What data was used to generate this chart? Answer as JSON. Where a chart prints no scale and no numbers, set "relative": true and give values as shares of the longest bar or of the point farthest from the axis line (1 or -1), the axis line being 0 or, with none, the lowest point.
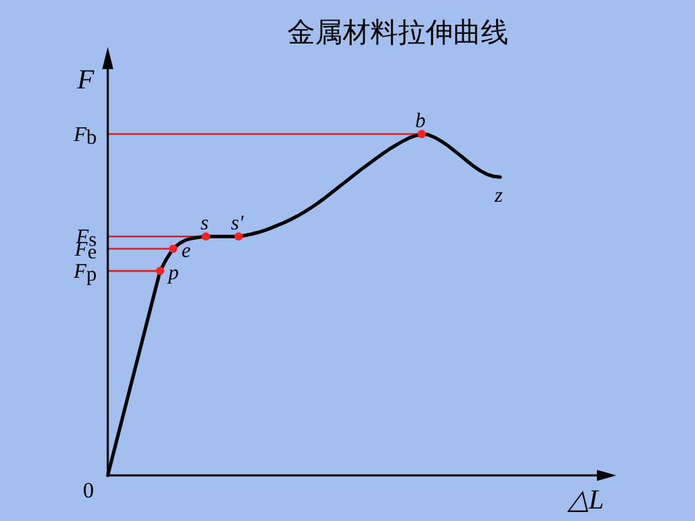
{
  "chart_data": {
    "type": "line",
    "title": "金属材料拉伸曲线",
    "xlabel": "△L",
    "ylabel": "F",
    "relative": true,
    "categories": [
      null,
      null,
      null,
      null,
      null,
      null,
      null,
      null,
      null,
      null,
      null,
      null,
      null,
      null,
      null,
      null,
      null,
      null,
      null,
      null,
      null,
      null,
      null,
      null,
      null,
      null,
      null,
      null,
      null,
      null,
      null,
      null,
      null,
      null,
      null,
      null,
      null,
      null,
      null,
      null,
      null,
      null,
      null,
      null,
      null,
      null,
      null,
      null,
      null,
      null,
      null,
      null,
      null,
      null,
      null,
      null,
      null,
      null,
      null,
      null,
      null
    ],
    "series": [
      {
        "color": "#000000",
        "values": [
          0,
          0.075,
          0.15,
          0.225,
          0.3,
          0.374,
          0.449,
          0.524,
          0.599,
          0.635,
          0.664,
          0.68,
          0.69,
          0.695,
          0.698,
          0.7,
          0.7,
          0.7,
          0.7,
          0.7,
          0.7,
          0.703,
          0.707,
          0.712,
          0.718,
          0.725,
          0.733,
          0.741,
          0.75,
          0.76,
          0.771,
          0.783,
          0.796,
          0.81,
          0.825,
          0.84,
          0.855,
          0.87,
          0.885,
          0.9,
          0.914,
          0.928,
          0.942,
          0.955,
          0.967,
          0.978,
          0.988,
          0.995,
          1,
          0.998,
          0.99,
          0.979,
          0.966,
          0.951,
          0.936,
          0.92,
          0.905,
          0.892,
          0.882,
          0.876,
          0.874
        ]
      }
    ],
    "ref_lines": [
      {
        "axis": "y",
        "value": 1,
        "label": "F$_{b}$",
        "color": "#e02020"
      },
      {
        "axis": "y",
        "value": 0.7,
        "label": "F$_{s}$",
        "color": "#e02020"
      },
      {
        "axis": "y",
        "value": 0.664,
        "label": "F$_{e}$",
        "color": "#e02020"
      },
      {
        "axis": "y",
        "value": 0.599,
        "label": "F$_{p}$",
        "color": "#e02020"
      }
    ],
    "annotations": [
      "p",
      {
        "text": "e",
        "y": 0.664
      },
      {
        "text": "s",
        "y": 0.7
      },
      {
        "text": "s'",
        "y": 0.7
      },
      {
        "text": "b",
        "y": 1
      },
      {
        "text": "z",
        "y": 0.874
      },
      "0"
    ]
  }
}
